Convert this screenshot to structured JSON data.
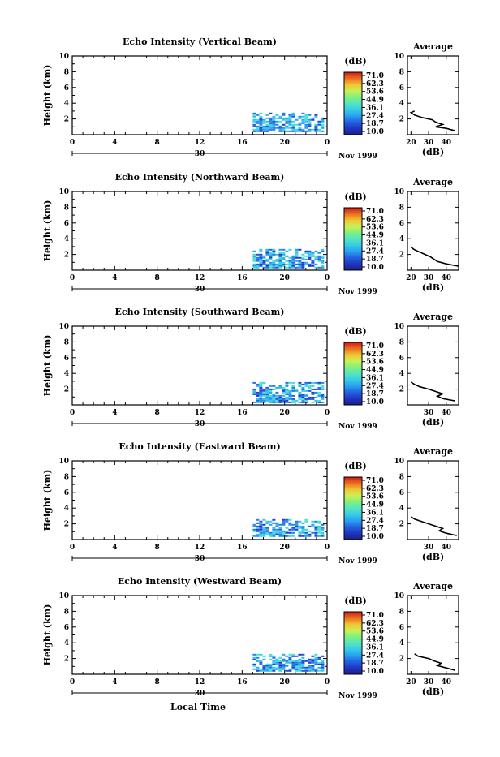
{
  "colorbar": {
    "unit": "(dB)",
    "ticks": [
      "71.0",
      "62.3",
      "53.6",
      "44.9",
      "36.1",
      "27.4",
      "18.7",
      "10.0"
    ],
    "range": [
      10.0,
      71.0
    ]
  },
  "x_axis": {
    "ticks": [
      "0",
      "4",
      "8",
      "12",
      "16",
      "20",
      "0"
    ],
    "day_label": "30",
    "month_label": "Nov 1999",
    "bottom_label": "Local Time"
  },
  "y_axis": {
    "label": "Height (km)",
    "ticks": [
      "2",
      "4",
      "6",
      "8",
      "10"
    ]
  },
  "avg": {
    "title": "Average",
    "xlabel": "(dB)"
  },
  "chart_data": [
    {
      "type": "heatmap",
      "title": "Echo Intensity (Vertical Beam)",
      "xlabel": "",
      "ylabel": "Height (km)",
      "xlim": [
        0,
        24
      ],
      "ylim": [
        0,
        10
      ],
      "colorbar_label": "(dB)",
      "echo_region": {
        "time_start": 17,
        "time_end": 23.5,
        "height_min": 0.4,
        "height_max": 2.8
      },
      "average_profile": {
        "xlim": [
          18,
          47
        ],
        "xticks": [
          "20",
          "30",
          "40"
        ],
        "ylim": [
          0,
          10
        ],
        "heights": [
          0.5,
          0.8,
          1.0,
          1.3,
          1.6,
          1.9,
          2.2,
          2.5,
          2.8,
          3.0
        ],
        "values": [
          45,
          40,
          34,
          38,
          34,
          32,
          26,
          22,
          20,
          22
        ]
      }
    },
    {
      "type": "heatmap",
      "title": "Echo Intensity (Northward Beam)",
      "xlabel": "",
      "ylabel": "Height (km)",
      "xlim": [
        0,
        24
      ],
      "ylim": [
        0,
        10
      ],
      "colorbar_label": "(dB)",
      "echo_region": {
        "time_start": 17,
        "time_end": 23.5,
        "height_min": 0.4,
        "height_max": 2.7
      },
      "average_profile": {
        "xlim": [
          18,
          47
        ],
        "xticks": [
          "20",
          "30",
          "40"
        ],
        "ylim": [
          0,
          10
        ],
        "heights": [
          0.5,
          0.8,
          1.1,
          1.4,
          1.7,
          2.0,
          2.3,
          2.6,
          2.9
        ],
        "values": [
          47,
          40,
          35,
          33,
          31,
          28,
          25,
          22,
          20
        ]
      }
    },
    {
      "type": "heatmap",
      "title": "Echo Intensity (Southward Beam)",
      "xlabel": "",
      "ylabel": "Height (km)",
      "xlim": [
        0,
        24
      ],
      "ylim": [
        0,
        10
      ],
      "colorbar_label": "(dB)",
      "echo_region": {
        "time_start": 17,
        "time_end": 23.5,
        "height_min": 0.3,
        "height_max": 2.9
      },
      "average_profile": {
        "xlim": [
          18,
          47
        ],
        "xticks": [
          "30",
          "40"
        ],
        "ylim": [
          0,
          10
        ],
        "heights": [
          0.5,
          0.8,
          1.1,
          1.4,
          1.7,
          2.0,
          2.3,
          2.6,
          2.9
        ],
        "values": [
          45,
          38,
          35,
          38,
          34,
          30,
          25,
          22,
          20
        ]
      }
    },
    {
      "type": "heatmap",
      "title": "Echo Intensity (Eastward Beam)",
      "xlabel": "",
      "ylabel": "Height (km)",
      "xlim": [
        0,
        24
      ],
      "ylim": [
        0,
        10
      ],
      "colorbar_label": "(dB)",
      "echo_region": {
        "time_start": 17,
        "time_end": 23.5,
        "height_min": 0.4,
        "height_max": 2.6
      },
      "average_profile": {
        "xlim": [
          18,
          47
        ],
        "xticks": [
          "30",
          "40"
        ],
        "ylim": [
          0,
          10
        ],
        "heights": [
          0.5,
          0.8,
          1.1,
          1.4,
          1.7,
          2.0,
          2.3,
          2.6,
          2.9
        ],
        "values": [
          46,
          40,
          36,
          38,
          34,
          30,
          26,
          22,
          20
        ]
      }
    },
    {
      "type": "heatmap",
      "title": "Echo Intensity (Westward Beam)",
      "xlabel": "Local Time",
      "ylabel": "Height (km)",
      "xlim": [
        0,
        24
      ],
      "ylim": [
        0,
        10
      ],
      "colorbar_label": "(dB)",
      "echo_region": {
        "time_start": 17,
        "time_end": 23.5,
        "height_min": 0.4,
        "height_max": 2.6
      },
      "average_profile": {
        "xlim": [
          18,
          47
        ],
        "xticks": [
          "20",
          "30",
          "40"
        ],
        "ylim": [
          0,
          10
        ],
        "heights": [
          0.5,
          0.8,
          1.1,
          1.4,
          1.7,
          2.0,
          2.3,
          2.6
        ],
        "values": [
          45,
          40,
          35,
          37,
          33,
          30,
          24,
          22
        ]
      }
    }
  ]
}
